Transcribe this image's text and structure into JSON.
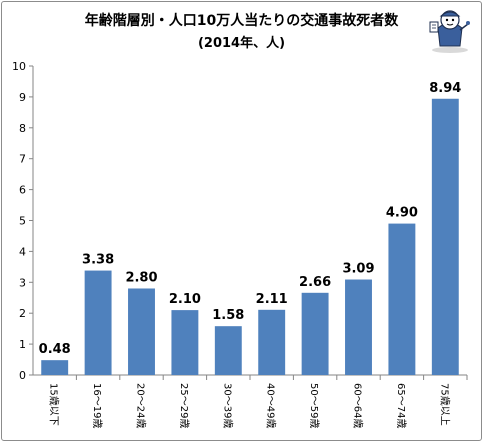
{
  "chart_data": {
    "type": "bar",
    "title": "年齢階層別・人口10万人当たりの交通事故死者数",
    "subtitle": "(2014年、人)",
    "categories": [
      "15歳以下",
      "16～19歳",
      "20～24歳",
      "25～29歳",
      "30～39歳",
      "40～49歳",
      "50～59歳",
      "60～64歳",
      "65～74歳",
      "75歳以上"
    ],
    "values": [
      0.48,
      3.38,
      2.8,
      2.1,
      1.58,
      2.11,
      2.66,
      3.09,
      4.9,
      8.94
    ],
    "data_labels": [
      "0.48",
      "3.38",
      "2.80",
      "2.10",
      "1.58",
      "2.11",
      "2.66",
      "3.09",
      "4.90",
      "8.94"
    ],
    "ylim": [
      0,
      10
    ],
    "yticks": [
      0,
      1,
      2,
      3,
      4,
      5,
      6,
      7,
      8,
      9,
      10
    ],
    "grid": false,
    "legend": "none",
    "bar_color": "#4f81bd"
  }
}
